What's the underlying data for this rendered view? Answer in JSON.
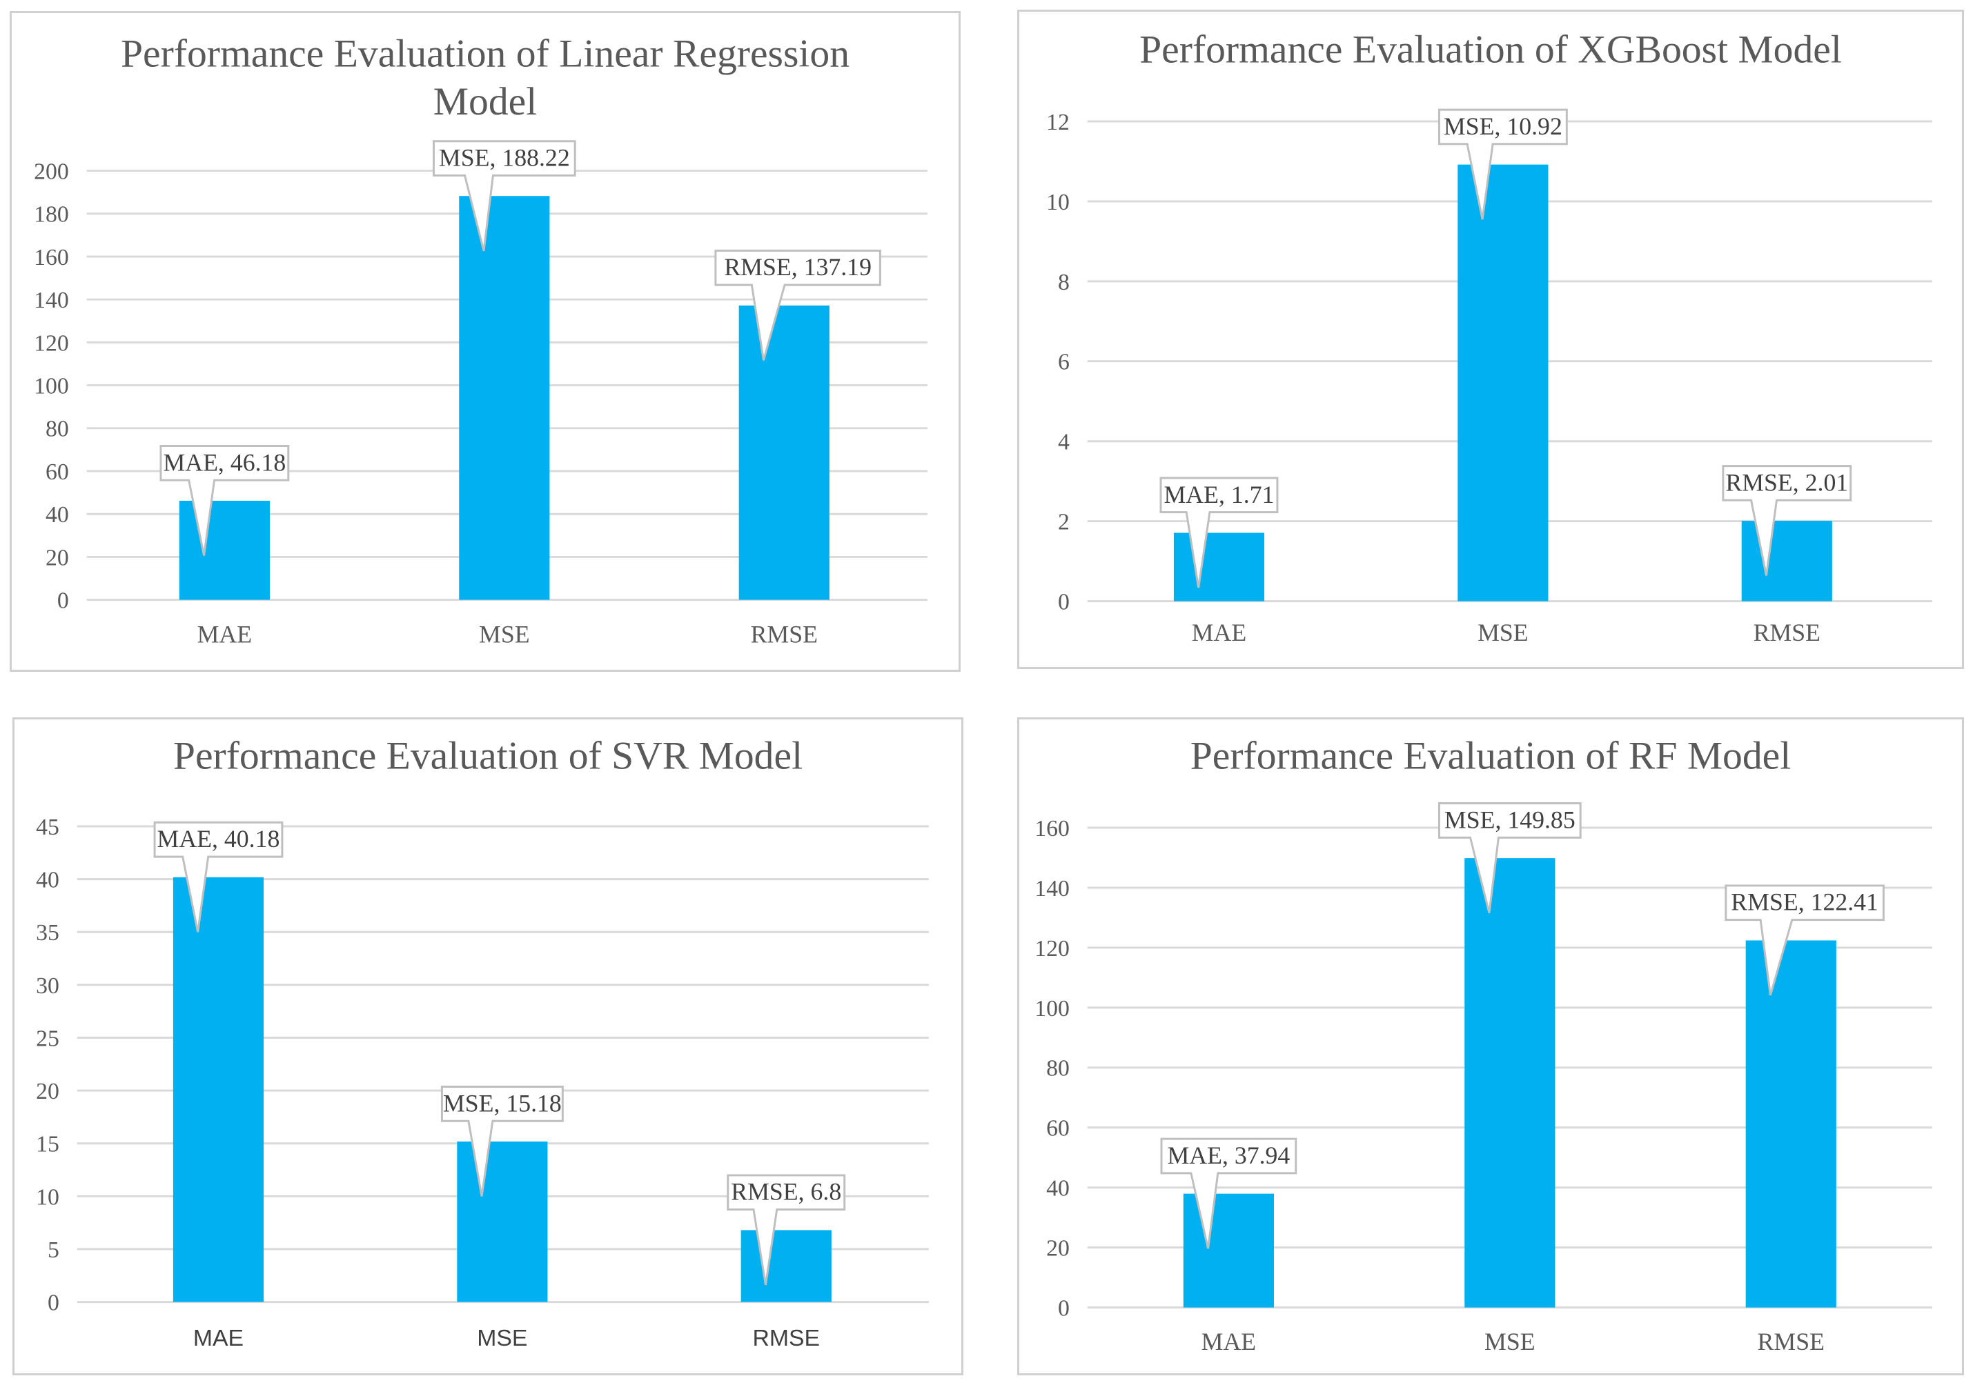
{
  "chart_data": [
    {
      "type": "bar",
      "title": "Performance Evaluation of Linear Regression Model",
      "title_lines": [
        "Performance Evaluation of Linear Regression",
        "Model"
      ],
      "categories": [
        "MAE",
        "MSE",
        "RMSE"
      ],
      "values": [
        46.18,
        188.22,
        137.19
      ],
      "data_labels": [
        "MAE, 46.18",
        "MSE, 188.22",
        "RMSE, 137.19"
      ],
      "ylim": [
        0,
        200
      ],
      "yticks": [
        0,
        20,
        40,
        60,
        80,
        100,
        120,
        140,
        160,
        180,
        200
      ],
      "bar_color": "#00b0f0",
      "grid": true,
      "xlabel": "",
      "ylabel": ""
    },
    {
      "type": "bar",
      "title": "Performance Evaluation of XGBoost Model",
      "title_lines": [
        "Performance Evaluation of XGBoost Model"
      ],
      "categories": [
        "MAE",
        "MSE",
        "RMSE"
      ],
      "values": [
        1.71,
        10.92,
        2.01
      ],
      "data_labels": [
        "MAE, 1.71",
        "MSE, 10.92",
        "RMSE, 2.01"
      ],
      "ylim": [
        0,
        12
      ],
      "yticks": [
        0,
        2,
        4,
        6,
        8,
        10,
        12
      ],
      "bar_color": "#00b0f0",
      "grid": true,
      "xlabel": "",
      "ylabel": ""
    },
    {
      "type": "bar",
      "title": "Performance Evaluation of SVR Model",
      "title_lines": [
        "Performance Evaluation of SVR Model"
      ],
      "categories": [
        "MAE",
        "MSE",
        "RMSE"
      ],
      "values": [
        40.18,
        15.18,
        6.8
      ],
      "data_labels": [
        "MAE, 40.18",
        "MSE, 15.18",
        "RMSE, 6.8"
      ],
      "ylim": [
        0,
        45
      ],
      "yticks": [
        0,
        5,
        10,
        15,
        20,
        25,
        30,
        35,
        40,
        45
      ],
      "bar_color": "#00b0f0",
      "grid": true,
      "xlabel": "",
      "ylabel": ""
    },
    {
      "type": "bar",
      "title": "Performance Evaluation of RF Model",
      "title_lines": [
        "Performance Evaluation of RF Model"
      ],
      "categories": [
        "MAE",
        "MSE",
        "RMSE"
      ],
      "values": [
        37.94,
        149.85,
        122.41
      ],
      "data_labels": [
        "MAE, 37.94",
        "MSE, 149.85",
        "RMSE, 122.41"
      ],
      "ylim": [
        0,
        160
      ],
      "yticks": [
        0,
        20,
        40,
        60,
        80,
        100,
        120,
        140,
        160
      ],
      "bar_color": "#00b0f0",
      "grid": true,
      "xlabel": "",
      "ylabel": ""
    }
  ]
}
